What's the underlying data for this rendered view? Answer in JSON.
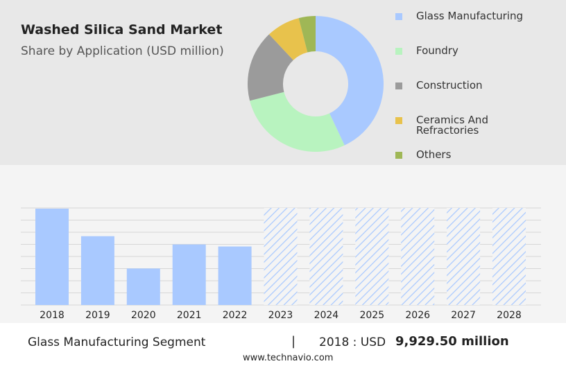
{
  "chart_data": [
    {
      "type": "pie",
      "title": "Washed Silica Sand Market",
      "subtitle": "Share by Application (USD million)",
      "donut": true,
      "categories": [
        "Glass Manufacturing",
        "Foundry",
        "Construction",
        "Ceramics And Refractories",
        "Others"
      ],
      "values": [
        43,
        28,
        17,
        8,
        4
      ],
      "colors": [
        "#a9c9ff",
        "#b8f3bf",
        "#9b9b9b",
        "#e8c24c",
        "#9fb756"
      ]
    },
    {
      "type": "bar",
      "categories": [
        "2018",
        "2019",
        "2020",
        "2021",
        "2022",
        "2023",
        "2024",
        "2025",
        "2026",
        "2027",
        "2028"
      ],
      "values": [
        9929.5,
        7090,
        3760,
        6240,
        6030,
        null,
        null,
        null,
        null,
        null,
        null
      ],
      "color": "#a9c9ff",
      "ylim": [
        0,
        10000
      ],
      "grid": true
    }
  ],
  "footer": {
    "segment": "Glass Manufacturing Segment",
    "separator": "|",
    "year_label": "2018 : USD",
    "amount": "9,929.50 million",
    "source": "www.technavio.com"
  }
}
